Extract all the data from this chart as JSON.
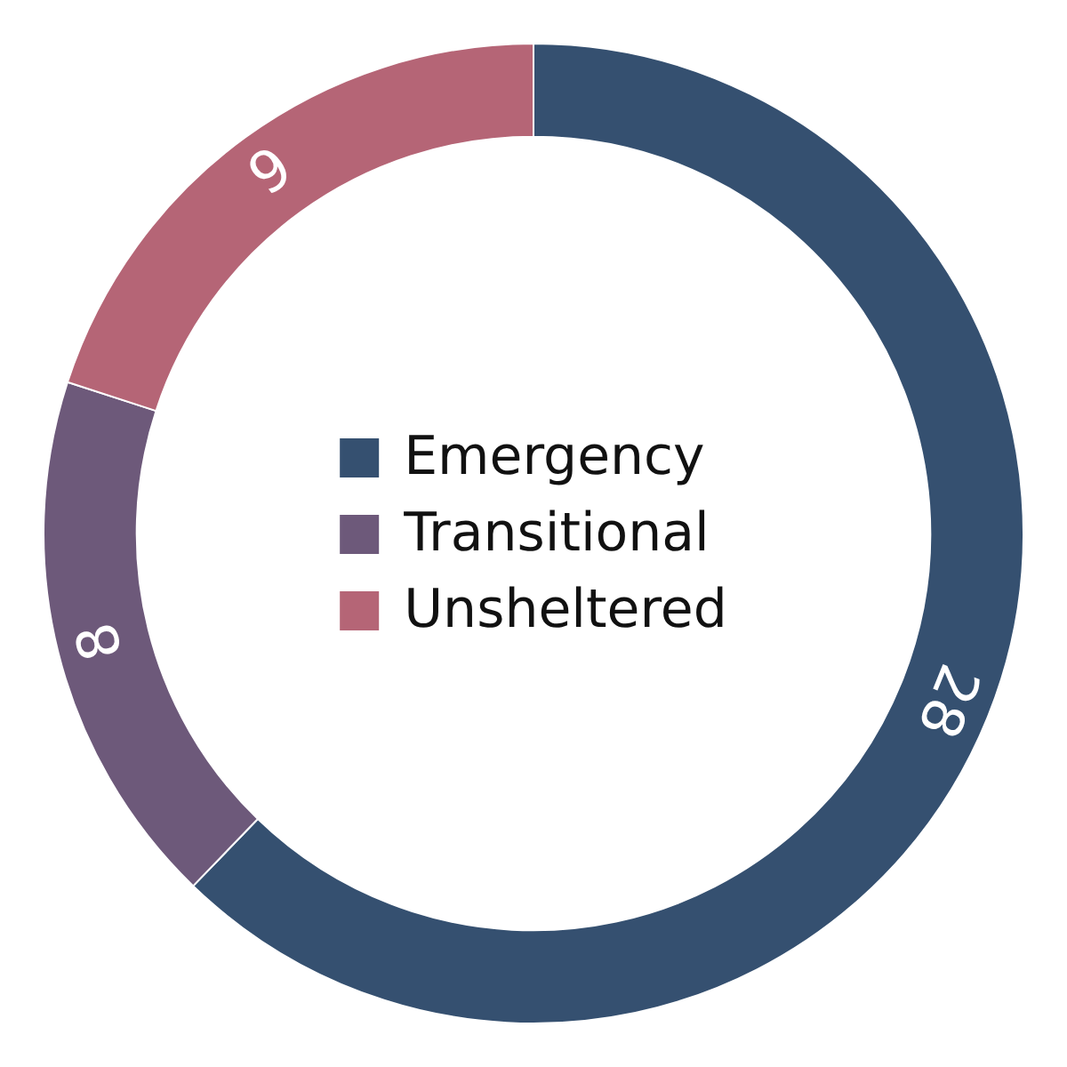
{
  "chart_data": {
    "type": "donut",
    "categories": [
      "Emergency",
      "Transitional",
      "Unsheltered"
    ],
    "values": [
      28,
      8,
      9
    ],
    "colors": [
      "#355070",
      "#6d597a",
      "#b56576"
    ],
    "data_labels": true,
    "legend": "center"
  }
}
